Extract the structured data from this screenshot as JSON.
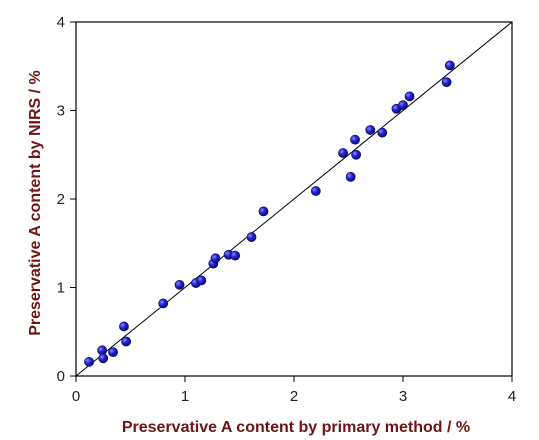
{
  "chart_data": {
    "type": "scatter",
    "xlabel": "Preservative A content by primary method / %",
    "ylabel": "Preservative A content by NIRS / %",
    "xlim": [
      0,
      4
    ],
    "ylim": [
      0,
      4
    ],
    "xticks": [
      "0",
      "1",
      "2",
      "3",
      "4"
    ],
    "yticks": [
      "0",
      "1",
      "2",
      "3",
      "4"
    ],
    "grid": false,
    "legend": "none",
    "reference_line": {
      "type": "identity",
      "from": [
        0,
        0
      ],
      "to": [
        4,
        4
      ]
    },
    "colors": {
      "points": "#1a1ab8",
      "point_edge": "#0a0a60",
      "axis_title": "#6e1414",
      "axis": "#000000"
    },
    "points": [
      {
        "x": 0.12,
        "y": 0.16
      },
      {
        "x": 0.24,
        "y": 0.29
      },
      {
        "x": 0.25,
        "y": 0.2
      },
      {
        "x": 0.34,
        "y": 0.27
      },
      {
        "x": 0.44,
        "y": 0.56
      },
      {
        "x": 0.46,
        "y": 0.39
      },
      {
        "x": 0.8,
        "y": 0.82
      },
      {
        "x": 0.95,
        "y": 1.03
      },
      {
        "x": 1.1,
        "y": 1.05
      },
      {
        "x": 1.15,
        "y": 1.08
      },
      {
        "x": 1.26,
        "y": 1.27
      },
      {
        "x": 1.28,
        "y": 1.33
      },
      {
        "x": 1.4,
        "y": 1.37
      },
      {
        "x": 1.46,
        "y": 1.36
      },
      {
        "x": 1.61,
        "y": 1.57
      },
      {
        "x": 1.72,
        "y": 1.86
      },
      {
        "x": 2.2,
        "y": 2.09
      },
      {
        "x": 2.45,
        "y": 2.52
      },
      {
        "x": 2.52,
        "y": 2.25
      },
      {
        "x": 2.56,
        "y": 2.67
      },
      {
        "x": 2.57,
        "y": 2.5
      },
      {
        "x": 2.7,
        "y": 2.78
      },
      {
        "x": 2.81,
        "y": 2.75
      },
      {
        "x": 2.94,
        "y": 3.02
      },
      {
        "x": 3.0,
        "y": 3.06
      },
      {
        "x": 3.06,
        "y": 3.16
      },
      {
        "x": 3.4,
        "y": 3.32
      },
      {
        "x": 3.43,
        "y": 3.51
      }
    ]
  }
}
